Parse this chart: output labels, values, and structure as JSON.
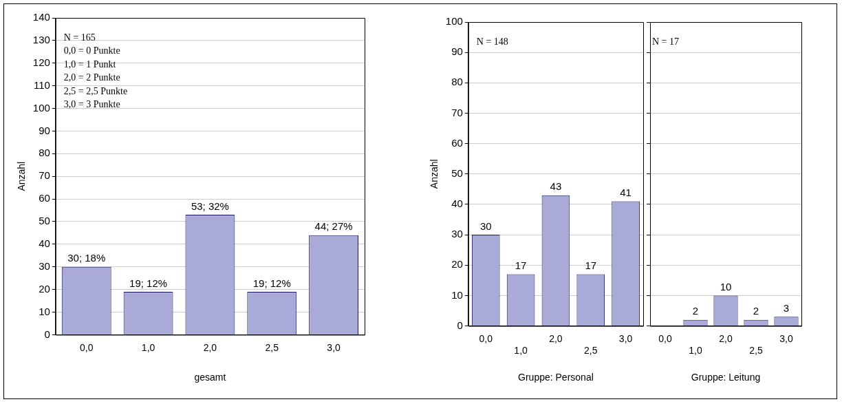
{
  "chart_data": [
    {
      "type": "bar",
      "xlabel": "gesamt",
      "ylabel": "Anzahl",
      "categories": [
        "0,0",
        "1,0",
        "2,0",
        "2,5",
        "3,0"
      ],
      "values": [
        30,
        19,
        53,
        19,
        44
      ],
      "value_labels": [
        "30; 18%",
        "19; 12%",
        "53; 32%",
        "19; 12%",
        "44; 27%"
      ],
      "color": "#aaaad8",
      "ylim": [
        0,
        140
      ],
      "yticks": [
        0,
        10,
        20,
        30,
        40,
        50,
        60,
        70,
        80,
        90,
        100,
        110,
        120,
        130,
        140
      ],
      "grid": "y",
      "annotations": [
        "N = 165",
        "0,0 = 0 Punkte",
        "1,0 = 1 Punkt",
        "2,0 = 2 Punkte",
        "2,5 = 2,5 Punkte",
        "3,0 = 3 Punkte"
      ]
    },
    {
      "type": "bar",
      "xlabel": "Gruppe: Personal",
      "ylabel": "Anzahl",
      "categories": [
        "0,0",
        "1,0",
        "2,0",
        "2,5",
        "3,0"
      ],
      "values": [
        30,
        17,
        43,
        17,
        41
      ],
      "data_labels": true,
      "color": "#aaaad8",
      "ylim": [
        0,
        100
      ],
      "yticks": [
        0,
        10,
        20,
        30,
        40,
        50,
        60,
        70,
        80,
        90,
        100
      ],
      "grid": "y",
      "annotations": [
        "N = 148"
      ]
    },
    {
      "type": "bar",
      "xlabel": "Gruppe: Leitung",
      "categories": [
        "0,0",
        "1,0",
        "2,0",
        "2,5",
        "3,0"
      ],
      "values": [
        0,
        2,
        10,
        2,
        3
      ],
      "value_labels": [
        null,
        "2",
        "10",
        "2",
        "3"
      ],
      "color": "#aaaad8",
      "ylim": [
        0,
        100
      ],
      "yticks": [
        0,
        10,
        20,
        30,
        40,
        50,
        60,
        70,
        80,
        90,
        100
      ],
      "grid": "y",
      "tick_labels": "x",
      "annotations": [
        "N = 17"
      ]
    }
  ]
}
